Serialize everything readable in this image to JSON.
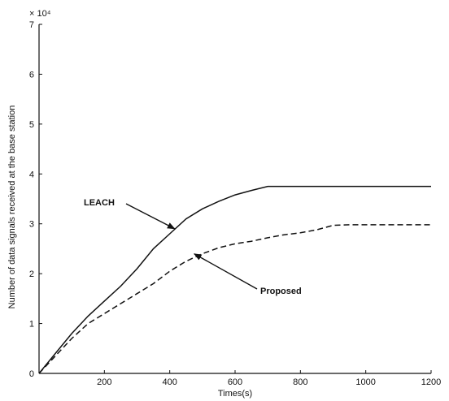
{
  "chart_data": {
    "type": "line",
    "xlabel": "Times(s)",
    "ylabel": "Number of data signals received at the base station",
    "y_multiplier": "× 10⁴",
    "xlim": [
      0,
      1200
    ],
    "ylim": [
      0,
      7
    ],
    "xticks": [
      "200",
      "400",
      "600",
      "800",
      "1000",
      "1200"
    ],
    "yticks": [
      "0",
      "1",
      "2",
      "3",
      "4",
      "5",
      "6",
      "7"
    ],
    "grid": false,
    "legend": "none",
    "series": [
      {
        "name": "LEACH",
        "style": "solid",
        "color": "#111111",
        "x": [
          0,
          50,
          100,
          150,
          200,
          250,
          300,
          350,
          400,
          450,
          500,
          550,
          600,
          650,
          700,
          750,
          800,
          850,
          900,
          950,
          1000,
          1050,
          1100,
          1150,
          1200
        ],
        "y": [
          0,
          0.4,
          0.8,
          1.15,
          1.45,
          1.75,
          2.1,
          2.5,
          2.8,
          3.1,
          3.3,
          3.45,
          3.58,
          3.67,
          3.75,
          3.75,
          3.75,
          3.75,
          3.75,
          3.75,
          3.75,
          3.75,
          3.75,
          3.75,
          3.75
        ]
      },
      {
        "name": "Proposed",
        "style": "dashed",
        "color": "#111111",
        "x": [
          0,
          50,
          100,
          150,
          200,
          250,
          300,
          350,
          400,
          450,
          500,
          550,
          600,
          650,
          700,
          750,
          800,
          850,
          900,
          950,
          1000,
          1050,
          1100,
          1150,
          1200
        ],
        "y": [
          0,
          0.35,
          0.7,
          1.0,
          1.2,
          1.4,
          1.6,
          1.8,
          2.05,
          2.25,
          2.4,
          2.52,
          2.6,
          2.65,
          2.72,
          2.78,
          2.82,
          2.88,
          2.97,
          2.98,
          2.98,
          2.98,
          2.98,
          2.98,
          2.98
        ]
      }
    ],
    "annotations": [
      {
        "text": "LEACH",
        "points_to_x": 420,
        "points_to_y": 2.95
      },
      {
        "text": "Proposed",
        "points_to_x": 480,
        "points_to_y": 2.43
      }
    ]
  }
}
